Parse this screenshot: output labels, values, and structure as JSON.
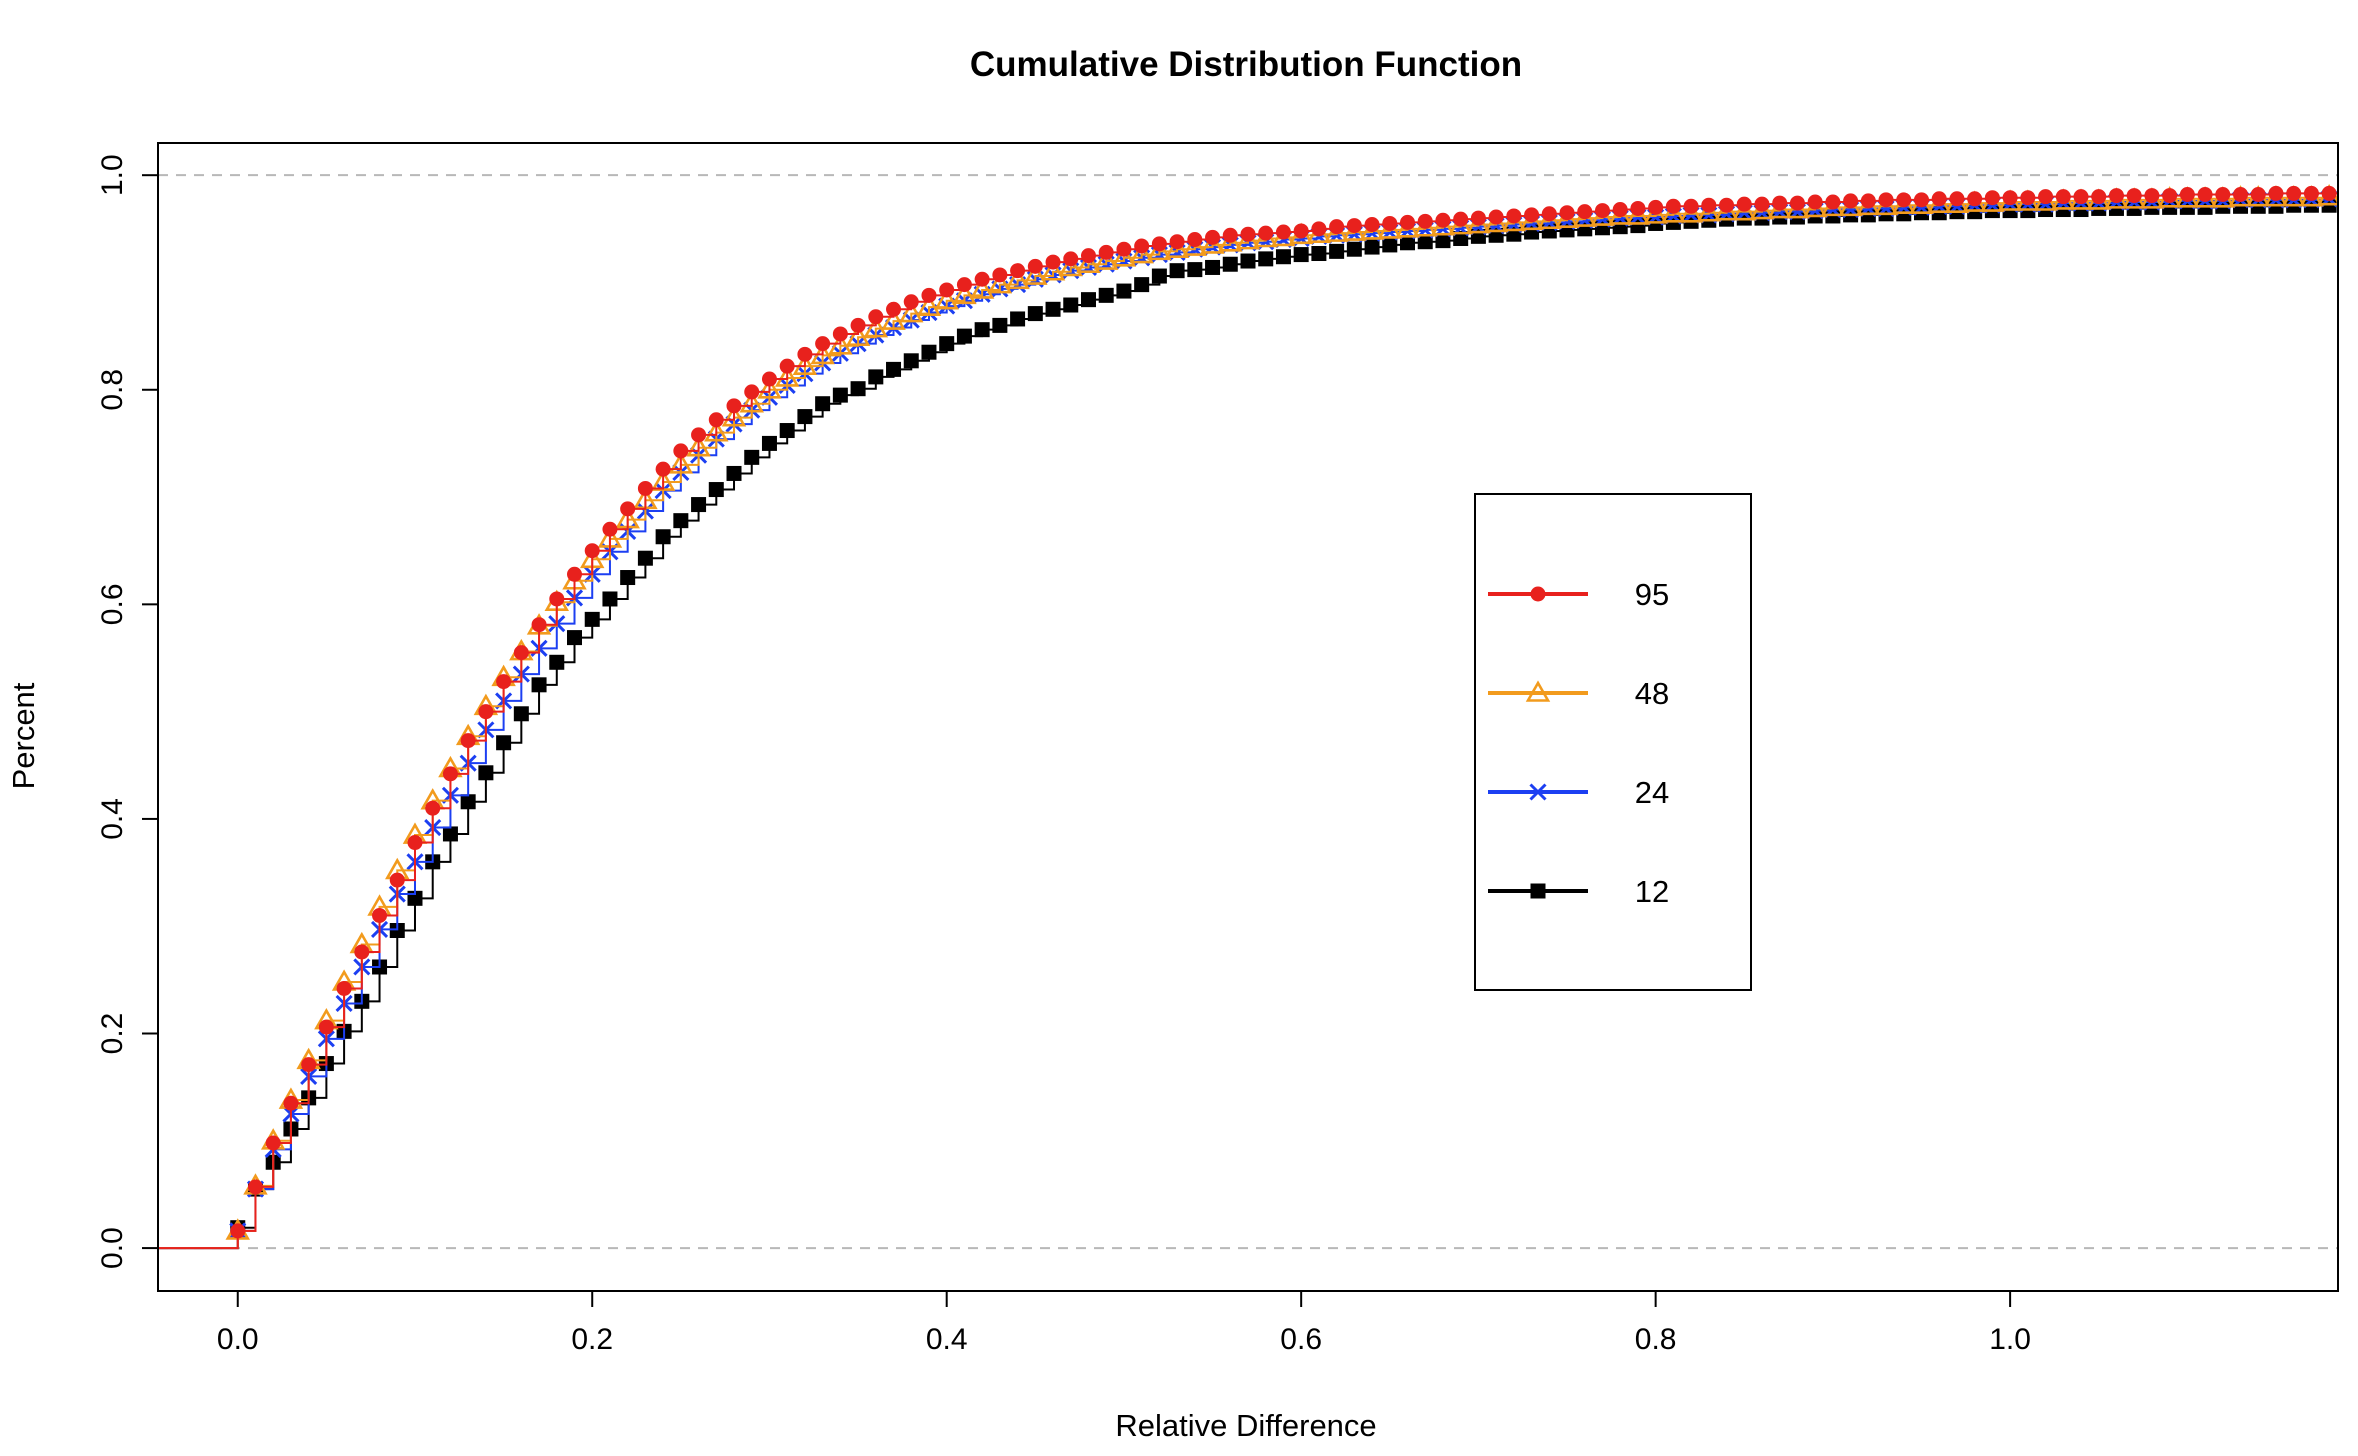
{
  "chart_data": {
    "type": "line",
    "title": "Cumulative Distribution Function",
    "xlabel": "Relative Difference",
    "ylabel": "Percent",
    "xlim": [
      -0.045,
      1.185
    ],
    "ylim": [
      -0.04,
      1.03
    ],
    "x_ticks": [
      0.0,
      0.2,
      0.4,
      0.6,
      0.8,
      1.0
    ],
    "x_tick_labels": [
      "0.0",
      "0.2",
      "0.4",
      "0.6",
      "0.8",
      "1.0"
    ],
    "y_ticks": [
      0.0,
      0.2,
      0.4,
      0.6,
      0.8,
      1.0
    ],
    "y_tick_labels": [
      "0.0",
      "0.2",
      "0.4",
      "0.6",
      "0.8",
      "1.0"
    ],
    "reference_lines_y": [
      0.0,
      1.0
    ],
    "grid": false,
    "legend_position": "center-right",
    "step": "post",
    "series": [
      {
        "name": "95",
        "color": "#e8211d",
        "marker": "circle",
        "x": [
          0,
          0.01,
          0.02,
          0.03,
          0.04,
          0.05,
          0.06,
          0.07,
          0.08,
          0.09,
          0.1,
          0.11,
          0.12,
          0.13,
          0.14,
          0.15,
          0.16,
          0.17,
          0.18,
          0.19,
          0.2,
          0.21,
          0.22,
          0.23,
          0.24,
          0.25,
          0.26,
          0.27,
          0.28,
          0.29,
          0.3,
          0.31,
          0.32,
          0.33,
          0.34,
          0.35,
          0.36,
          0.37,
          0.38,
          0.39,
          0.4,
          0.41,
          0.42,
          0.43,
          0.44,
          0.45,
          0.46,
          0.47,
          0.48,
          0.49,
          0.5,
          0.51,
          0.52,
          0.53,
          0.54,
          0.55,
          0.56,
          0.57,
          0.58,
          0.59,
          0.6,
          0.61,
          0.62,
          0.63,
          0.64,
          0.65,
          0.66,
          0.67,
          0.68,
          0.69,
          0.7,
          0.71,
          0.72,
          0.73,
          0.74,
          0.75,
          0.76,
          0.77,
          0.78,
          0.79,
          0.8,
          0.81,
          0.82,
          0.83,
          0.84,
          0.85,
          0.86,
          0.87,
          0.88,
          0.89,
          0.9,
          0.91,
          0.92,
          0.93,
          0.94,
          0.95,
          0.96,
          0.97,
          0.98,
          0.99,
          1.0,
          1.01,
          1.02,
          1.03,
          1.04,
          1.05,
          1.06,
          1.07,
          1.08,
          1.09,
          1.1,
          1.11,
          1.12,
          1.13,
          1.14,
          1.15,
          1.16,
          1.17,
          1.18
        ],
        "y": [
          0.016,
          0.057,
          0.098,
          0.135,
          0.171,
          0.206,
          0.242,
          0.276,
          0.31,
          0.343,
          0.378,
          0.41,
          0.442,
          0.473,
          0.5,
          0.528,
          0.555,
          0.581,
          0.605,
          0.628,
          0.65,
          0.67,
          0.689,
          0.708,
          0.726,
          0.743,
          0.758,
          0.772,
          0.785,
          0.798,
          0.81,
          0.822,
          0.833,
          0.843,
          0.852,
          0.86,
          0.868,
          0.875,
          0.882,
          0.888,
          0.893,
          0.898,
          0.903,
          0.907,
          0.911,
          0.915,
          0.919,
          0.922,
          0.925,
          0.928,
          0.931,
          0.934,
          0.936,
          0.938,
          0.94,
          0.942,
          0.944,
          0.945,
          0.946,
          0.947,
          0.948,
          0.95,
          0.952,
          0.953,
          0.954,
          0.955,
          0.956,
          0.957,
          0.958,
          0.959,
          0.96,
          0.961,
          0.962,
          0.963,
          0.964,
          0.965,
          0.966,
          0.967,
          0.968,
          0.969,
          0.97,
          0.971,
          0.971,
          0.972,
          0.972,
          0.973,
          0.973,
          0.974,
          0.974,
          0.975,
          0.975,
          0.976,
          0.976,
          0.977,
          0.977,
          0.977,
          0.978,
          0.978,
          0.978,
          0.979,
          0.979,
          0.979,
          0.98,
          0.98,
          0.98,
          0.98,
          0.981,
          0.981,
          0.981,
          0.981,
          0.982,
          0.982,
          0.982,
          0.982,
          0.982,
          0.983,
          0.983,
          0.983,
          0.983
        ]
      },
      {
        "name": "48",
        "color": "#f29b1d",
        "marker": "triangle",
        "x": [
          0,
          0.01,
          0.02,
          0.03,
          0.04,
          0.05,
          0.06,
          0.07,
          0.08,
          0.09,
          0.1,
          0.11,
          0.12,
          0.13,
          0.14,
          0.15,
          0.16,
          0.17,
          0.18,
          0.19,
          0.2,
          0.21,
          0.22,
          0.23,
          0.24,
          0.25,
          0.26,
          0.27,
          0.28,
          0.29,
          0.3,
          0.31,
          0.32,
          0.33,
          0.34,
          0.35,
          0.36,
          0.37,
          0.38,
          0.39,
          0.4,
          0.41,
          0.42,
          0.43,
          0.44,
          0.45,
          0.46,
          0.47,
          0.48,
          0.49,
          0.5,
          0.51,
          0.52,
          0.53,
          0.54,
          0.55,
          0.56,
          0.57,
          0.58,
          0.59,
          0.6,
          0.61,
          0.62,
          0.63,
          0.64,
          0.65,
          0.66,
          0.67,
          0.68,
          0.69,
          0.7,
          0.71,
          0.72,
          0.73,
          0.74,
          0.75,
          0.76,
          0.77,
          0.78,
          0.79,
          0.8,
          0.81,
          0.82,
          0.83,
          0.84,
          0.85,
          0.86,
          0.87,
          0.88,
          0.89,
          0.9,
          0.91,
          0.92,
          0.93,
          0.94,
          0.95,
          0.96,
          0.97,
          0.98,
          0.99,
          1.0,
          1.01,
          1.02,
          1.03,
          1.04,
          1.05,
          1.06,
          1.07,
          1.08,
          1.09,
          1.1,
          1.11,
          1.12,
          1.13,
          1.14,
          1.15,
          1.16,
          1.17,
          1.18
        ],
        "y": [
          0.016,
          0.058,
          0.1,
          0.138,
          0.175,
          0.212,
          0.248,
          0.283,
          0.318,
          0.352,
          0.385,
          0.417,
          0.447,
          0.477,
          0.505,
          0.532,
          0.556,
          0.58,
          0.602,
          0.622,
          0.642,
          0.661,
          0.679,
          0.697,
          0.714,
          0.73,
          0.746,
          0.76,
          0.774,
          0.787,
          0.8,
          0.811,
          0.822,
          0.832,
          0.841,
          0.849,
          0.857,
          0.864,
          0.871,
          0.877,
          0.883,
          0.888,
          0.893,
          0.898,
          0.902,
          0.906,
          0.91,
          0.914,
          0.917,
          0.92,
          0.923,
          0.926,
          0.929,
          0.931,
          0.933,
          0.935,
          0.937,
          0.939,
          0.941,
          0.942,
          0.944,
          0.945,
          0.946,
          0.947,
          0.948,
          0.949,
          0.95,
          0.951,
          0.952,
          0.953,
          0.954,
          0.955,
          0.956,
          0.957,
          0.958,
          0.959,
          0.96,
          0.961,
          0.962,
          0.962,
          0.963,
          0.964,
          0.964,
          0.965,
          0.966,
          0.966,
          0.967,
          0.968,
          0.968,
          0.969,
          0.97,
          0.97,
          0.971,
          0.971,
          0.972,
          0.972,
          0.973,
          0.973,
          0.974,
          0.974,
          0.975,
          0.975,
          0.975,
          0.976,
          0.976,
          0.976,
          0.977,
          0.977,
          0.977,
          0.978,
          0.978,
          0.978,
          0.978,
          0.979,
          0.979,
          0.979,
          0.979,
          0.979,
          0.98
        ]
      },
      {
        "name": "24",
        "color": "#1c3ff2",
        "marker": "x",
        "x": [
          0,
          0.01,
          0.02,
          0.03,
          0.04,
          0.05,
          0.06,
          0.07,
          0.08,
          0.09,
          0.1,
          0.11,
          0.12,
          0.13,
          0.14,
          0.15,
          0.16,
          0.17,
          0.18,
          0.19,
          0.2,
          0.21,
          0.22,
          0.23,
          0.24,
          0.25,
          0.26,
          0.27,
          0.28,
          0.29,
          0.3,
          0.31,
          0.32,
          0.33,
          0.34,
          0.35,
          0.36,
          0.37,
          0.38,
          0.39,
          0.4,
          0.41,
          0.42,
          0.43,
          0.44,
          0.45,
          0.46,
          0.47,
          0.48,
          0.49,
          0.5,
          0.51,
          0.52,
          0.53,
          0.54,
          0.55,
          0.56,
          0.57,
          0.58,
          0.59,
          0.6,
          0.61,
          0.62,
          0.63,
          0.64,
          0.65,
          0.66,
          0.67,
          0.68,
          0.69,
          0.7,
          0.71,
          0.72,
          0.73,
          0.74,
          0.75,
          0.76,
          0.77,
          0.78,
          0.79,
          0.8,
          0.81,
          0.82,
          0.83,
          0.84,
          0.85,
          0.86,
          0.87,
          0.88,
          0.89,
          0.9,
          0.91,
          0.92,
          0.93,
          0.94,
          0.95,
          0.96,
          0.97,
          0.98,
          0.99,
          1.0,
          1.01,
          1.02,
          1.03,
          1.04,
          1.05,
          1.06,
          1.07,
          1.08,
          1.09,
          1.1,
          1.11,
          1.12,
          1.13,
          1.14,
          1.15,
          1.16,
          1.17,
          1.18
        ],
        "y": [
          0.016,
          0.055,
          0.092,
          0.125,
          0.16,
          0.195,
          0.228,
          0.262,
          0.297,
          0.33,
          0.36,
          0.392,
          0.422,
          0.452,
          0.483,
          0.51,
          0.535,
          0.559,
          0.582,
          0.606,
          0.628,
          0.649,
          0.668,
          0.687,
          0.706,
          0.723,
          0.739,
          0.754,
          0.768,
          0.781,
          0.793,
          0.804,
          0.815,
          0.825,
          0.834,
          0.843,
          0.851,
          0.858,
          0.865,
          0.872,
          0.878,
          0.883,
          0.889,
          0.894,
          0.898,
          0.903,
          0.907,
          0.911,
          0.914,
          0.917,
          0.92,
          0.923,
          0.926,
          0.928,
          0.931,
          0.933,
          0.935,
          0.937,
          0.938,
          0.94,
          0.941,
          0.943,
          0.944,
          0.945,
          0.946,
          0.947,
          0.948,
          0.949,
          0.95,
          0.951,
          0.952,
          0.953,
          0.954,
          0.955,
          0.956,
          0.957,
          0.958,
          0.959,
          0.96,
          0.961,
          0.961,
          0.962,
          0.963,
          0.963,
          0.964,
          0.965,
          0.965,
          0.966,
          0.966,
          0.967,
          0.968,
          0.968,
          0.969,
          0.969,
          0.97,
          0.97,
          0.971,
          0.971,
          0.972,
          0.972,
          0.973,
          0.973,
          0.973,
          0.974,
          0.974,
          0.974,
          0.975,
          0.975,
          0.975,
          0.976,
          0.976,
          0.976,
          0.976,
          0.977,
          0.977,
          0.977,
          0.977,
          0.977,
          0.978
        ]
      },
      {
        "name": "12",
        "color": "#000000",
        "marker": "square",
        "x": [
          0,
          0.01,
          0.02,
          0.03,
          0.04,
          0.05,
          0.06,
          0.07,
          0.08,
          0.09,
          0.1,
          0.11,
          0.12,
          0.13,
          0.14,
          0.15,
          0.16,
          0.17,
          0.18,
          0.19,
          0.2,
          0.21,
          0.22,
          0.23,
          0.24,
          0.25,
          0.26,
          0.27,
          0.28,
          0.29,
          0.3,
          0.31,
          0.32,
          0.33,
          0.34,
          0.35,
          0.36,
          0.37,
          0.38,
          0.39,
          0.4,
          0.41,
          0.42,
          0.43,
          0.44,
          0.45,
          0.46,
          0.47,
          0.48,
          0.49,
          0.5,
          0.51,
          0.52,
          0.53,
          0.54,
          0.55,
          0.56,
          0.57,
          0.58,
          0.59,
          0.6,
          0.61,
          0.62,
          0.63,
          0.64,
          0.65,
          0.66,
          0.67,
          0.68,
          0.69,
          0.7,
          0.71,
          0.72,
          0.73,
          0.74,
          0.75,
          0.76,
          0.77,
          0.78,
          0.79,
          0.8,
          0.81,
          0.82,
          0.83,
          0.84,
          0.85,
          0.86,
          0.87,
          0.88,
          0.89,
          0.9,
          0.91,
          0.92,
          0.93,
          0.94,
          0.95,
          0.96,
          0.97,
          0.98,
          0.99,
          1.0,
          1.01,
          1.02,
          1.03,
          1.04,
          1.05,
          1.06,
          1.07,
          1.08,
          1.09,
          1.1,
          1.11,
          1.12,
          1.13,
          1.14,
          1.15,
          1.16,
          1.17,
          1.18
        ],
        "y": [
          0.019,
          0.055,
          0.08,
          0.111,
          0.14,
          0.172,
          0.202,
          0.23,
          0.262,
          0.296,
          0.326,
          0.36,
          0.386,
          0.416,
          0.443,
          0.471,
          0.498,
          0.525,
          0.546,
          0.569,
          0.586,
          0.605,
          0.625,
          0.643,
          0.663,
          0.678,
          0.693,
          0.707,
          0.722,
          0.737,
          0.75,
          0.762,
          0.775,
          0.787,
          0.795,
          0.801,
          0.812,
          0.819,
          0.827,
          0.835,
          0.843,
          0.85,
          0.856,
          0.86,
          0.866,
          0.871,
          0.875,
          0.879,
          0.884,
          0.888,
          0.892,
          0.898,
          0.906,
          0.911,
          0.912,
          0.914,
          0.917,
          0.92,
          0.922,
          0.924,
          0.926,
          0.927,
          0.929,
          0.931,
          0.933,
          0.935,
          0.937,
          0.938,
          0.939,
          0.941,
          0.943,
          0.944,
          0.945,
          0.947,
          0.948,
          0.949,
          0.95,
          0.951,
          0.952,
          0.953,
          0.955,
          0.956,
          0.957,
          0.958,
          0.959,
          0.96,
          0.96,
          0.961,
          0.961,
          0.962,
          0.962,
          0.963,
          0.963,
          0.964,
          0.964,
          0.965,
          0.965,
          0.966,
          0.966,
          0.967,
          0.967,
          0.967,
          0.968,
          0.968,
          0.968,
          0.969,
          0.969,
          0.969,
          0.97,
          0.97,
          0.97,
          0.97,
          0.971,
          0.971,
          0.971,
          0.971,
          0.972,
          0.972,
          0.972
        ]
      }
    ]
  }
}
